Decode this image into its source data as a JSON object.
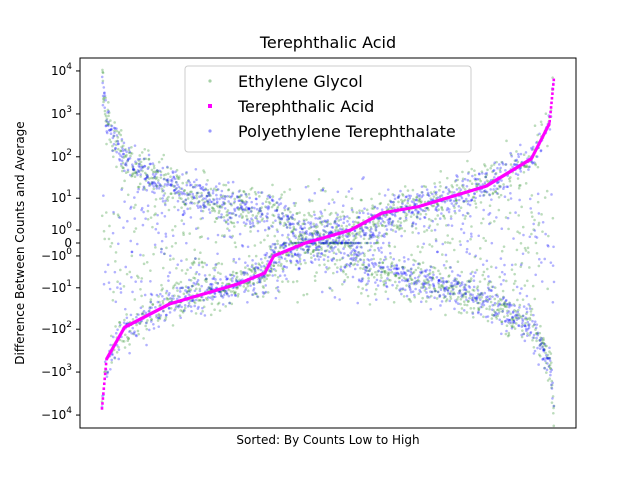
{
  "chart_data": {
    "type": "scatter",
    "title": "Terephthalic Acid",
    "xlabel": "Sorted: By Counts Low to High",
    "ylabel": "Difference Between Counts and Average",
    "yscale": "symlog",
    "linthresh": 1,
    "ylim": [
      -20000,
      20000
    ],
    "x_ticks_visible": false,
    "grid": false,
    "legend_position": "top-center",
    "n_points": 2000,
    "yticks": [
      {
        "value": 10000,
        "base": "10",
        "exp": "4",
        "sign": ""
      },
      {
        "value": 1000,
        "base": "10",
        "exp": "3",
        "sign": ""
      },
      {
        "value": 100,
        "base": "10",
        "exp": "2",
        "sign": ""
      },
      {
        "value": 10,
        "base": "10",
        "exp": "1",
        "sign": ""
      },
      {
        "value": 1,
        "base": "10",
        "exp": "0",
        "sign": ""
      },
      {
        "value": 0,
        "label": "0"
      },
      {
        "value": -1,
        "base": "10",
        "exp": "0",
        "sign": "−"
      },
      {
        "value": -10,
        "base": "10",
        "exp": "1",
        "sign": "−"
      },
      {
        "value": -100,
        "base": "10",
        "exp": "2",
        "sign": "−"
      },
      {
        "value": -1000,
        "base": "10",
        "exp": "3",
        "sign": "−"
      },
      {
        "value": -10000,
        "base": "10",
        "exp": "4",
        "sign": "−"
      }
    ],
    "series": [
      {
        "name": "Ethylene Glycol",
        "color": "#228B22",
        "marker": "dot",
        "opacity": 0.3
      },
      {
        "name": "Terephthalic Acid",
        "color": "#FF00FF",
        "marker": "square",
        "opacity": 1.0,
        "profile": [
          [
            0,
            -7000
          ],
          [
            0.01,
            -500
          ],
          [
            0.05,
            -90
          ],
          [
            0.15,
            -25
          ],
          [
            0.3,
            -8
          ],
          [
            0.36,
            -4
          ],
          [
            0.38,
            -1
          ],
          [
            0.45,
            0
          ],
          [
            0.55,
            1
          ],
          [
            0.62,
            4
          ],
          [
            0.7,
            6
          ],
          [
            0.85,
            20
          ],
          [
            0.95,
            90
          ],
          [
            0.99,
            600
          ],
          [
            1,
            7000
          ]
        ]
      },
      {
        "name": "Polyethylene Terephthalate",
        "color": "#0000FF",
        "marker": "dot",
        "opacity": 0.3
      }
    ]
  }
}
